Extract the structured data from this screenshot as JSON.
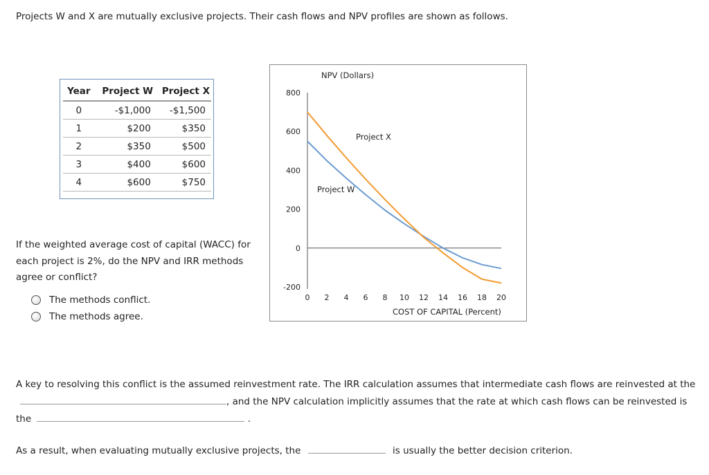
{
  "intro": "Projects W and X are mutually exclusive projects. Their cash flows and NPV profiles are shown as follows.",
  "table": {
    "headers": [
      "Year",
      "Project W",
      "Project X"
    ],
    "rows": [
      [
        "0",
        "-$1,000",
        "-$1,500"
      ],
      [
        "1",
        "$200",
        "$350"
      ],
      [
        "2",
        "$350",
        "$500"
      ],
      [
        "3",
        "$400",
        "$600"
      ],
      [
        "4",
        "$600",
        "$750"
      ]
    ]
  },
  "question": "If the weighted average cost of capital (WACC) for each project is 2%, do the NPV and IRR methods agree or conflict?",
  "options": [
    "The methods conflict.",
    "The methods agree."
  ],
  "chart_data": {
    "type": "line",
    "title": "",
    "ylabel": "NPV (Dollars)",
    "xlabel": "COST OF CAPITAL (Percent)",
    "xlim": [
      0,
      20
    ],
    "ylim": [
      -200,
      800
    ],
    "x_ticks": [
      "0",
      "2",
      "4",
      "6",
      "8",
      "10",
      "12",
      "14",
      "16",
      "18",
      "20"
    ],
    "y_ticks": [
      "800",
      "600",
      "400",
      "200",
      "0",
      "-200"
    ],
    "series": [
      {
        "name": "Project W",
        "color": "#6a9bd1",
        "x": [
          0,
          2,
          4,
          6,
          8,
          10,
          12,
          14,
          16,
          18,
          20
        ],
        "values": [
          550,
          450,
          360,
          275,
          195,
          125,
          60,
          0,
          -50,
          -85,
          -105
        ]
      },
      {
        "name": "Project X",
        "color": "#f29b30",
        "x": [
          0,
          2,
          4,
          6,
          8,
          10,
          12,
          14,
          16,
          18,
          20
        ],
        "values": [
          700,
          580,
          465,
          355,
          250,
          150,
          55,
          -25,
          -100,
          -160,
          -180
        ]
      }
    ]
  },
  "paragraph": {
    "part1": "A key to resolving this conflict is the assumed reinvestment rate. The IRR calculation assumes that intermediate cash flows are reinvested at the",
    "part2": ", and the NPV calculation implicitly assumes that the rate at which cash flows can be reinvested is the",
    "part3": "."
  },
  "conclusion": {
    "before": "As a result, when evaluating mutually exclusive projects, the",
    "after": "is usually the better decision criterion."
  }
}
